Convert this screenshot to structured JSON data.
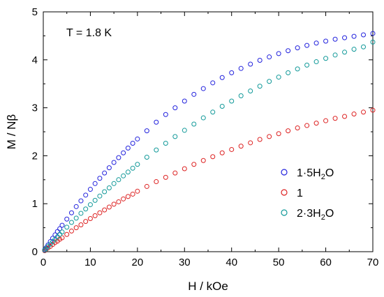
{
  "chart_data": {
    "type": "scatter",
    "xlabel": "H / kOe",
    "ylabel": "M / Nβ",
    "xlim": [
      0,
      70
    ],
    "ylim": [
      0,
      5
    ],
    "xticks": [
      0,
      10,
      20,
      30,
      40,
      50,
      60,
      70
    ],
    "yticks": [
      0,
      1,
      2,
      3,
      4,
      5
    ],
    "grid": false,
    "annotation": "T = 1.8 K",
    "legend_position": "lower-right",
    "marker": "open-circle",
    "series": [
      {
        "name": "1·5H₂O",
        "legend_parts": [
          "1·5H",
          "2",
          "O"
        ],
        "color": "#2222dd",
        "x": [
          0.3,
          0.6,
          1.0,
          1.5,
          2.0,
          2.5,
          3.0,
          3.5,
          4.0,
          5.0,
          6.0,
          7.0,
          8.0,
          9.0,
          10.0,
          11.0,
          12.0,
          13.0,
          14.0,
          15.0,
          16.0,
          17.0,
          18.0,
          19.0,
          20.0,
          22.0,
          24.0,
          26.0,
          28.0,
          30.0,
          32.0,
          34.0,
          36.0,
          38.0,
          40.0,
          42.0,
          44.0,
          46.0,
          48.0,
          50.0,
          52.0,
          54.0,
          56.0,
          58.0,
          60.0,
          62.0,
          64.0,
          66.0,
          68.0,
          70.0
        ],
        "y": [
          0.04,
          0.08,
          0.14,
          0.21,
          0.28,
          0.35,
          0.42,
          0.48,
          0.55,
          0.68,
          0.81,
          0.94,
          1.06,
          1.18,
          1.3,
          1.42,
          1.53,
          1.64,
          1.75,
          1.86,
          1.96,
          2.06,
          2.16,
          2.26,
          2.35,
          2.52,
          2.7,
          2.86,
          3.0,
          3.14,
          3.28,
          3.4,
          3.52,
          3.63,
          3.73,
          3.82,
          3.91,
          3.99,
          4.06,
          4.13,
          4.19,
          4.25,
          4.3,
          4.35,
          4.39,
          4.43,
          4.46,
          4.49,
          4.52,
          4.55
        ]
      },
      {
        "name": "1",
        "legend_parts": [
          "1",
          "",
          ""
        ],
        "color": "#dd2222",
        "x": [
          0.3,
          0.6,
          1.0,
          1.5,
          2.0,
          2.5,
          3.0,
          3.5,
          4.0,
          5.0,
          6.0,
          7.0,
          8.0,
          9.0,
          10.0,
          11.0,
          12.0,
          13.0,
          14.0,
          15.0,
          16.0,
          17.0,
          18.0,
          19.0,
          20.0,
          22.0,
          24.0,
          26.0,
          28.0,
          30.0,
          32.0,
          34.0,
          36.0,
          38.0,
          40.0,
          42.0,
          44.0,
          46.0,
          48.0,
          50.0,
          52.0,
          54.0,
          56.0,
          58.0,
          60.0,
          62.0,
          64.0,
          66.0,
          68.0,
          70.0
        ],
        "y": [
          0.02,
          0.05,
          0.08,
          0.11,
          0.15,
          0.19,
          0.22,
          0.26,
          0.29,
          0.36,
          0.43,
          0.5,
          0.56,
          0.63,
          0.69,
          0.75,
          0.81,
          0.87,
          0.93,
          0.99,
          1.04,
          1.1,
          1.15,
          1.2,
          1.26,
          1.36,
          1.46,
          1.55,
          1.64,
          1.73,
          1.82,
          1.9,
          1.98,
          2.06,
          2.13,
          2.2,
          2.27,
          2.34,
          2.4,
          2.46,
          2.52,
          2.58,
          2.63,
          2.68,
          2.73,
          2.78,
          2.82,
          2.87,
          2.91,
          2.95
        ]
      },
      {
        "name": "2·3H₂O",
        "legend_parts": [
          "2·3H",
          "2",
          "O"
        ],
        "color": "#119999",
        "x": [
          0.3,
          0.6,
          1.0,
          1.5,
          2.0,
          2.5,
          3.0,
          3.5,
          4.0,
          5.0,
          6.0,
          7.0,
          8.0,
          9.0,
          10.0,
          11.0,
          12.0,
          13.0,
          14.0,
          15.0,
          16.0,
          17.0,
          18.0,
          19.0,
          20.0,
          22.0,
          24.0,
          26.0,
          28.0,
          30.0,
          32.0,
          34.0,
          36.0,
          38.0,
          40.0,
          42.0,
          44.0,
          46.0,
          48.0,
          50.0,
          52.0,
          54.0,
          56.0,
          58.0,
          60.0,
          62.0,
          64.0,
          66.0,
          68.0,
          70.0
        ],
        "y": [
          0.03,
          0.06,
          0.11,
          0.16,
          0.21,
          0.26,
          0.31,
          0.36,
          0.41,
          0.51,
          0.61,
          0.7,
          0.8,
          0.89,
          0.98,
          1.07,
          1.16,
          1.25,
          1.33,
          1.42,
          1.5,
          1.58,
          1.66,
          1.74,
          1.82,
          1.97,
          2.12,
          2.26,
          2.4,
          2.53,
          2.66,
          2.79,
          2.91,
          3.03,
          3.14,
          3.25,
          3.35,
          3.45,
          3.55,
          3.64,
          3.73,
          3.81,
          3.89,
          3.96,
          4.03,
          4.1,
          4.16,
          4.22,
          4.27,
          4.37
        ]
      }
    ]
  }
}
